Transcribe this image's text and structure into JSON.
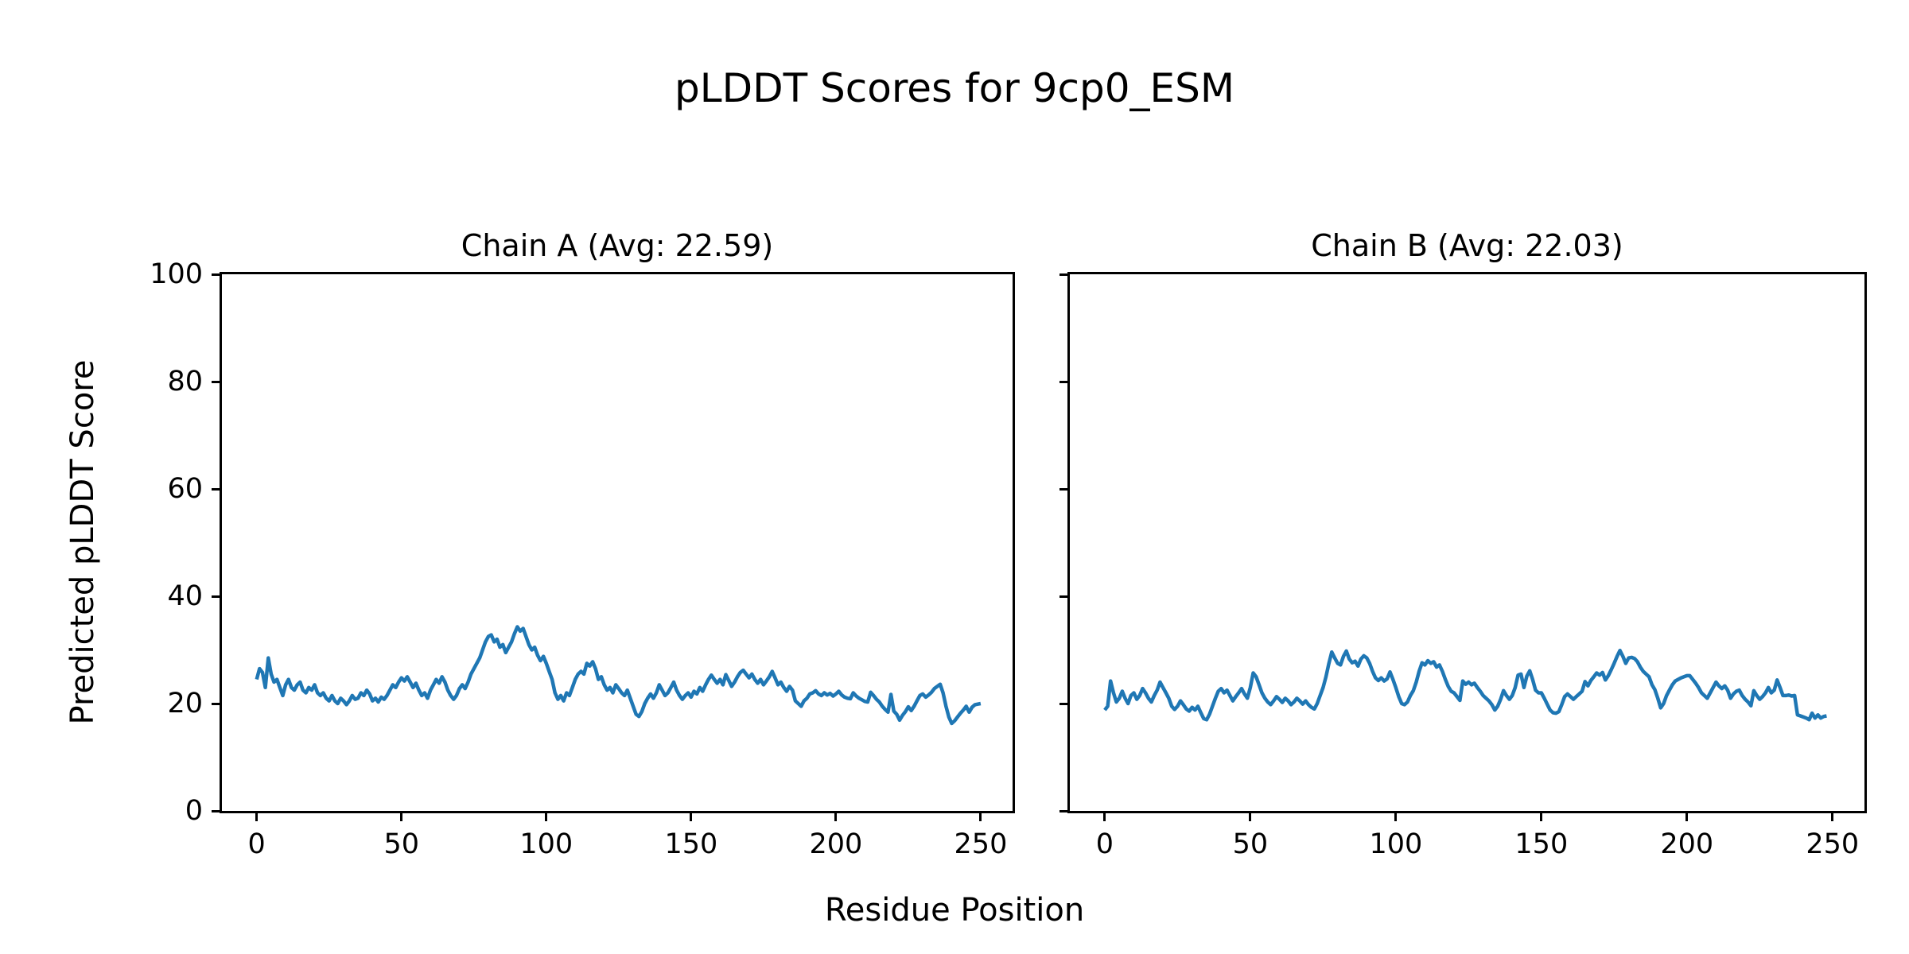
{
  "figure": {
    "suptitle": "pLDDT Scores for 9cp0_ESM",
    "xlabel": "Residue Position",
    "ylabel": "Predicted pLDDT Score",
    "background": "#ffffff",
    "line_color": "#1f77b4",
    "axis_color": "#000000"
  },
  "chart_data": [
    {
      "type": "line",
      "title": "Chain A (Avg: 22.59)",
      "chain": "A",
      "avg": 22.59,
      "xlabel": "Residue Position",
      "ylabel": "Predicted pLDDT Score",
      "xlim": [
        -12,
        261
      ],
      "ylim": [
        0,
        100
      ],
      "xticks": [
        0,
        50,
        100,
        150,
        200,
        250
      ],
      "yticks": [
        0,
        20,
        40,
        60,
        80,
        100
      ],
      "ytick_labels_visible": true,
      "legend": "none",
      "grid": false,
      "x_start": 0,
      "x_step": 1,
      "values": [
        24.5,
        26.5,
        25.8,
        23,
        28.5,
        25.5,
        24,
        24.5,
        23,
        21.5,
        23.5,
        24.5,
        23,
        22.5,
        23.5,
        24,
        22.5,
        22,
        23,
        22.5,
        23.5,
        22,
        21.5,
        22,
        21,
        20.5,
        21.5,
        20.5,
        20,
        21,
        20.5,
        19.8,
        20.5,
        21.5,
        20.8,
        21,
        22,
        21.5,
        22.5,
        21.8,
        20.5,
        21,
        20.3,
        21.2,
        20.8,
        21.5,
        22.5,
        23.5,
        23,
        24,
        24.8,
        24.2,
        25,
        24,
        23,
        23.8,
        22.5,
        21.5,
        22,
        21,
        22.5,
        23.5,
        24.5,
        23.8,
        25,
        24,
        22.5,
        21.5,
        20.8,
        21.5,
        22.8,
        23.5,
        22.8,
        24,
        25.5,
        26.5,
        27.5,
        28.5,
        30,
        31.5,
        32.5,
        32.8,
        31.5,
        32,
        30.5,
        31,
        29.5,
        30.5,
        31.5,
        33,
        34.3,
        33.5,
        34,
        32.5,
        31,
        30,
        30.5,
        29,
        28,
        28.8,
        27.5,
        26,
        24.5,
        22,
        20.8,
        21.5,
        20.5,
        22,
        21.5,
        23,
        24.5,
        25.5,
        26,
        25.5,
        27.5,
        27,
        27.8,
        26.5,
        24.5,
        25,
        23.5,
        22.5,
        23,
        22,
        23.5,
        22.8,
        22,
        21.5,
        22.5,
        21,
        19.5,
        18,
        17.6,
        18.5,
        20,
        21,
        21.8,
        21,
        22,
        23.5,
        22.5,
        21.5,
        22,
        23,
        24,
        22.5,
        21.5,
        20.8,
        21.5,
        22,
        21.2,
        22.3,
        21.8,
        23,
        22.3,
        23.5,
        24.5,
        25.3,
        24.5,
        23.8,
        24.5,
        23.5,
        25.4,
        24.3,
        23.2,
        24,
        25,
        25.8,
        26.2,
        25.5,
        24.8,
        25.5,
        24.5,
        23.8,
        24.5,
        23.5,
        24.2,
        25,
        26,
        24.8,
        23.5,
        24,
        23,
        22.3,
        23.2,
        22.5,
        20.5,
        20,
        19.5,
        20.5,
        21,
        21.8,
        22,
        22.4,
        21.8,
        21.5,
        22,
        21.6,
        21.9,
        21.4,
        21.8,
        22.3,
        21.6,
        21.2,
        21,
        20.9,
        22,
        21.4,
        21,
        20.7,
        20.4,
        20.3,
        22.1,
        21.5,
        20.8,
        20.3,
        19.5,
        18.9,
        18.4,
        21.7,
        18.6,
        18,
        16.9,
        17.8,
        18.5,
        19.4,
        18.7,
        19.5,
        20.5,
        21.5,
        21.8,
        21.2,
        21.6,
        22.1,
        22.8,
        23.2,
        23.6,
        22,
        19.5,
        17.5,
        16.3,
        16.8,
        17.5,
        18.2,
        18.8,
        19.5,
        18.4,
        19.3,
        19.8,
        19.9,
        20
      ]
    },
    {
      "type": "line",
      "title": "Chain B (Avg: 22.03)",
      "chain": "B",
      "avg": 22.03,
      "xlabel": "Residue Position",
      "ylabel": "Predicted pLDDT Score",
      "xlim": [
        -12,
        261
      ],
      "ylim": [
        0,
        100
      ],
      "xticks": [
        0,
        50,
        100,
        150,
        200,
        250
      ],
      "yticks": [
        0,
        20,
        40,
        60,
        80,
        100
      ],
      "ytick_labels_visible": false,
      "legend": "none",
      "grid": false,
      "x_start": 0,
      "x_step": 1,
      "values": [
        18.8,
        19.5,
        24.2,
        22,
        20.3,
        21,
        22.3,
        21,
        20,
        21.5,
        22,
        20.8,
        21.5,
        22.8,
        22,
        21,
        20.3,
        21.5,
        22.5,
        24,
        23,
        22,
        21,
        19.5,
        18.9,
        19.5,
        20.5,
        19.8,
        19,
        18.6,
        19.3,
        18.8,
        19.5,
        18.3,
        17.2,
        17,
        18,
        19.5,
        21,
        22.3,
        22.8,
        22,
        22.5,
        21.5,
        20.5,
        21.3,
        22,
        22.8,
        21.8,
        21,
        23,
        25.7,
        25,
        23.5,
        22,
        21,
        20.3,
        19.8,
        20.5,
        21.3,
        20.8,
        20.2,
        21,
        20.5,
        19.8,
        20.3,
        21,
        20.5,
        19.9,
        20.5,
        19.8,
        19.3,
        19,
        20,
        21.5,
        23,
        25,
        27.5,
        29.6,
        28.5,
        27.5,
        27.2,
        28.8,
        29.8,
        28.3,
        27.6,
        27.9,
        27,
        28.3,
        28.9,
        28.5,
        27.5,
        26,
        24.8,
        24.3,
        24.8,
        24.2,
        24.6,
        25.9,
        24.5,
        23,
        21.3,
        20,
        19.8,
        20.3,
        21.5,
        22.4,
        24,
        26,
        27.6,
        27.2,
        28,
        27.5,
        27.8,
        26.8,
        27.2,
        26,
        24.5,
        23.2,
        22.3,
        22,
        21.3,
        20.6,
        24.2,
        23.6,
        24,
        23.5,
        23.8,
        23,
        22.3,
        21.5,
        21,
        20.5,
        19.8,
        18.8,
        19.5,
        20.8,
        22.4,
        21.5,
        20.8,
        21.5,
        23,
        25.3,
        25.5,
        23,
        25.1,
        26.1,
        24.5,
        22.5,
        22,
        22,
        21,
        19.9,
        18.8,
        18.3,
        18.2,
        18.5,
        19.8,
        21.3,
        21.8,
        21.3,
        20.8,
        21.3,
        21.8,
        22.3,
        24.1,
        23.3,
        24.3,
        25,
        25.7,
        25.3,
        25.8,
        24.4,
        25.2,
        26.3,
        27.5,
        28.8,
        29.9,
        28.8,
        27.5,
        28.5,
        28.6,
        28.4,
        27.8,
        26.8,
        26,
        25.5,
        25,
        23.5,
        22.6,
        21,
        19.2,
        20,
        21.5,
        22.5,
        23.5,
        24.2,
        24.5,
        24.8,
        25,
        25.2,
        25.2,
        24.5,
        23.8,
        23,
        22,
        21.5,
        21,
        22,
        23,
        24,
        23.3,
        22.8,
        23.3,
        22.5,
        21,
        21.8,
        22.3,
        22.5,
        21.5,
        20.8,
        20.3,
        19.6,
        22.4,
        21.5,
        20.8,
        21.3,
        22,
        23,
        22,
        22.5,
        24.4,
        23,
        21.5,
        21.5,
        21.6,
        21.4,
        21.5,
        17.9,
        17.7,
        17.5,
        17.3,
        17,
        18.2,
        17.3,
        17.9,
        17.3,
        17.6,
        17.7
      ]
    }
  ]
}
